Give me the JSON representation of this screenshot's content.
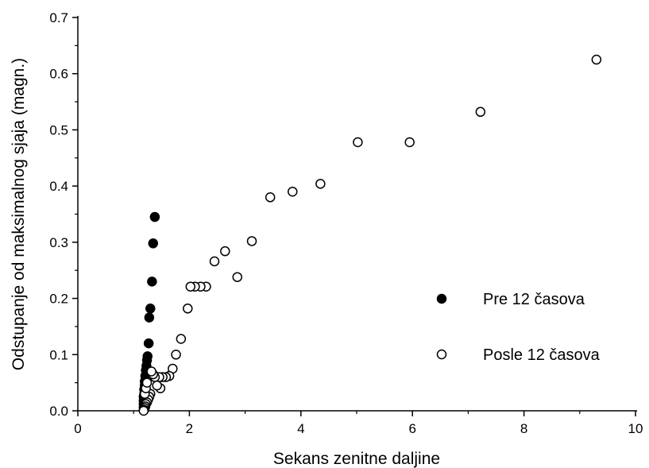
{
  "chart_data": {
    "type": "scatter",
    "title": "",
    "xlabel": "Sekans zenitne daljine",
    "ylabel": "Odstupanje od maksimalnog sjaja (magn.)",
    "xlim": [
      0,
      10
    ],
    "ylim": [
      0,
      0.7
    ],
    "x_ticks": [
      "0",
      "2",
      "4",
      "6",
      "8",
      "10"
    ],
    "y_ticks": [
      "0.0",
      "0.1",
      "0.2",
      "0.3",
      "0.4",
      "0.5",
      "0.6",
      "0.7"
    ],
    "grid": false,
    "legend_position": "right",
    "series": [
      {
        "name": "Pre 12 časova",
        "marker": "filled-circle",
        "color": "#000000",
        "points": [
          [
            1.38,
            0.345
          ],
          [
            1.35,
            0.298
          ],
          [
            1.33,
            0.23
          ],
          [
            1.3,
            0.182
          ],
          [
            1.28,
            0.166
          ],
          [
            1.27,
            0.12
          ],
          [
            1.25,
            0.097
          ],
          [
            1.24,
            0.09
          ],
          [
            1.23,
            0.08
          ],
          [
            1.22,
            0.072
          ],
          [
            1.21,
            0.062
          ],
          [
            1.2,
            0.052
          ],
          [
            1.2,
            0.045
          ],
          [
            1.19,
            0.038
          ],
          [
            1.19,
            0.03
          ],
          [
            1.18,
            0.025
          ],
          [
            1.18,
            0.018
          ],
          [
            1.18,
            0.012
          ],
          [
            1.18,
            0.006
          ],
          [
            1.18,
            0.001
          ]
        ]
      },
      {
        "name": "Posle 12 časova",
        "marker": "open-circle",
        "color": "#000000",
        "points": [
          [
            9.3,
            0.625
          ],
          [
            7.22,
            0.532
          ],
          [
            5.95,
            0.478
          ],
          [
            5.02,
            0.478
          ],
          [
            4.35,
            0.404
          ],
          [
            3.85,
            0.39
          ],
          [
            3.45,
            0.38
          ],
          [
            3.12,
            0.302
          ],
          [
            2.86,
            0.238
          ],
          [
            2.64,
            0.284
          ],
          [
            2.45,
            0.266
          ],
          [
            2.3,
            0.221
          ],
          [
            2.2,
            0.221
          ],
          [
            2.1,
            0.221
          ],
          [
            2.02,
            0.221
          ],
          [
            1.97,
            0.182
          ],
          [
            1.85,
            0.128
          ],
          [
            1.76,
            0.1
          ],
          [
            1.7,
            0.075
          ],
          [
            1.64,
            0.062
          ],
          [
            1.58,
            0.06
          ],
          [
            1.52,
            0.06
          ],
          [
            1.46,
            0.06
          ],
          [
            1.48,
            0.04
          ],
          [
            1.42,
            0.045
          ],
          [
            1.38,
            0.06
          ],
          [
            1.35,
            0.065
          ],
          [
            1.32,
            0.07
          ],
          [
            1.3,
            0.03
          ],
          [
            1.28,
            0.025
          ],
          [
            1.26,
            0.02
          ],
          [
            1.24,
            0.015
          ],
          [
            1.22,
            0.012
          ],
          [
            1.21,
            0.008
          ],
          [
            1.2,
            0.005
          ],
          [
            1.19,
            0.002
          ],
          [
            1.18,
            0.0
          ],
          [
            1.2,
            0.03
          ],
          [
            1.22,
            0.04
          ],
          [
            1.24,
            0.05
          ]
        ]
      }
    ]
  }
}
